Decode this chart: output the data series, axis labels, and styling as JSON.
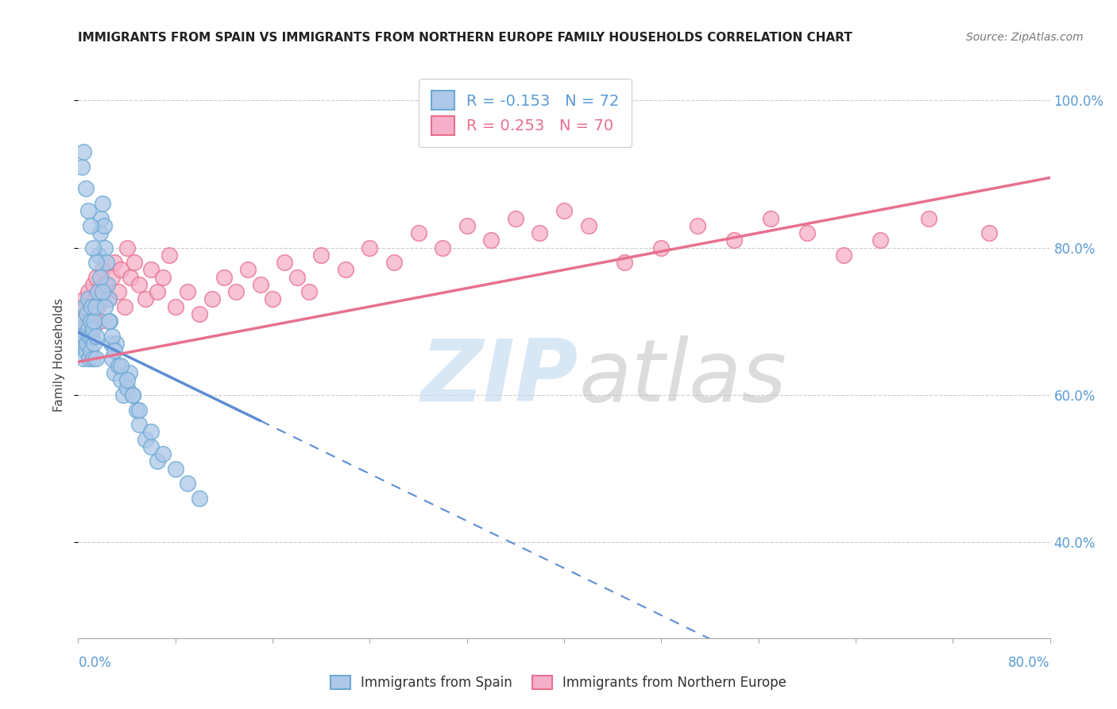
{
  "title": "IMMIGRANTS FROM SPAIN VS IMMIGRANTS FROM NORTHERN EUROPE FAMILY HOUSEHOLDS CORRELATION CHART",
  "source": "Source: ZipAtlas.com",
  "series1_label": "Immigrants from Spain",
  "series2_label": "Immigrants from Northern Europe",
  "series1_R": -0.153,
  "series1_N": 72,
  "series2_R": 0.253,
  "series2_N": 70,
  "series1_color": "#adc8e8",
  "series2_color": "#f5afc8",
  "series1_edge_color": "#6aaad4",
  "series2_edge_color": "#e8708f",
  "series1_line_color": "#5b8ed4",
  "series2_line_color": "#e8708f",
  "xmin": 0.0,
  "xmax": 0.8,
  "ymin": 0.27,
  "ymax": 1.04,
  "ytick_vals": [
    0.4,
    0.6,
    0.8,
    1.0
  ],
  "ytick_labels": [
    "40.0%",
    "60.0%",
    "80.0%",
    "100.0%"
  ],
  "spain_x": [
    0.001,
    0.002,
    0.003,
    0.004,
    0.005,
    0.005,
    0.006,
    0.007,
    0.007,
    0.008,
    0.008,
    0.009,
    0.009,
    0.01,
    0.01,
    0.011,
    0.011,
    0.012,
    0.012,
    0.013,
    0.013,
    0.014,
    0.015,
    0.015,
    0.016,
    0.017,
    0.018,
    0.019,
    0.02,
    0.021,
    0.022,
    0.023,
    0.024,
    0.025,
    0.026,
    0.027,
    0.028,
    0.03,
    0.031,
    0.033,
    0.035,
    0.037,
    0.04,
    0.042,
    0.045,
    0.048,
    0.05,
    0.055,
    0.06,
    0.065,
    0.003,
    0.004,
    0.006,
    0.008,
    0.01,
    0.012,
    0.015,
    0.018,
    0.02,
    0.022,
    0.025,
    0.028,
    0.03,
    0.035,
    0.04,
    0.045,
    0.05,
    0.06,
    0.07,
    0.08,
    0.09,
    0.1
  ],
  "spain_y": [
    0.67,
    0.69,
    0.7,
    0.65,
    0.68,
    0.72,
    0.66,
    0.71,
    0.67,
    0.69,
    0.73,
    0.68,
    0.65,
    0.7,
    0.66,
    0.72,
    0.68,
    0.69,
    0.65,
    0.7,
    0.67,
    0.72,
    0.68,
    0.65,
    0.74,
    0.79,
    0.82,
    0.84,
    0.86,
    0.83,
    0.8,
    0.78,
    0.75,
    0.73,
    0.7,
    0.67,
    0.65,
    0.63,
    0.67,
    0.64,
    0.62,
    0.6,
    0.61,
    0.63,
    0.6,
    0.58,
    0.56,
    0.54,
    0.53,
    0.51,
    0.91,
    0.93,
    0.88,
    0.85,
    0.83,
    0.8,
    0.78,
    0.76,
    0.74,
    0.72,
    0.7,
    0.68,
    0.66,
    0.64,
    0.62,
    0.6,
    0.58,
    0.55,
    0.52,
    0.5,
    0.48,
    0.46
  ],
  "ne_x": [
    0.001,
    0.002,
    0.003,
    0.004,
    0.005,
    0.006,
    0.007,
    0.008,
    0.009,
    0.01,
    0.011,
    0.012,
    0.013,
    0.014,
    0.015,
    0.016,
    0.017,
    0.018,
    0.019,
    0.02,
    0.022,
    0.025,
    0.028,
    0.03,
    0.033,
    0.035,
    0.038,
    0.04,
    0.043,
    0.046,
    0.05,
    0.055,
    0.06,
    0.065,
    0.07,
    0.075,
    0.08,
    0.09,
    0.1,
    0.11,
    0.12,
    0.13,
    0.14,
    0.15,
    0.16,
    0.17,
    0.18,
    0.19,
    0.2,
    0.22,
    0.24,
    0.26,
    0.28,
    0.3,
    0.32,
    0.34,
    0.36,
    0.38,
    0.4,
    0.42,
    0.45,
    0.48,
    0.51,
    0.54,
    0.57,
    0.6,
    0.63,
    0.66,
    0.7,
    0.75
  ],
  "ne_y": [
    0.67,
    0.7,
    0.72,
    0.68,
    0.73,
    0.69,
    0.71,
    0.74,
    0.7,
    0.72,
    0.68,
    0.75,
    0.71,
    0.73,
    0.76,
    0.72,
    0.74,
    0.7,
    0.73,
    0.77,
    0.75,
    0.73,
    0.76,
    0.78,
    0.74,
    0.77,
    0.72,
    0.8,
    0.76,
    0.78,
    0.75,
    0.73,
    0.77,
    0.74,
    0.76,
    0.79,
    0.72,
    0.74,
    0.71,
    0.73,
    0.76,
    0.74,
    0.77,
    0.75,
    0.73,
    0.78,
    0.76,
    0.74,
    0.79,
    0.77,
    0.8,
    0.78,
    0.82,
    0.8,
    0.83,
    0.81,
    0.84,
    0.82,
    0.85,
    0.83,
    0.78,
    0.8,
    0.83,
    0.81,
    0.84,
    0.82,
    0.79,
    0.81,
    0.84,
    0.82
  ],
  "spain_line_x0": 0.0,
  "spain_line_y0": 0.685,
  "spain_line_x1": 0.15,
  "spain_line_y1": 0.565,
  "ne_line_x0": 0.0,
  "ne_line_y0": 0.645,
  "ne_line_x1": 0.8,
  "ne_line_y1": 0.895
}
